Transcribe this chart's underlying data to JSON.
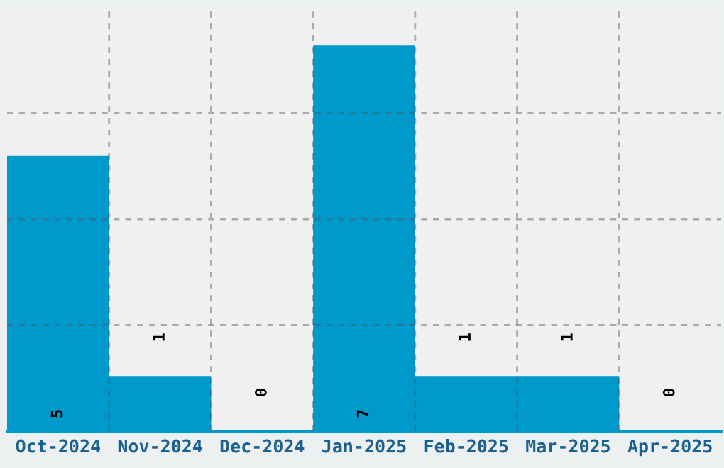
{
  "chart_data": {
    "type": "bar",
    "categories": [
      "Oct-2024",
      "Nov-2024",
      "Dec-2024",
      "Jan-2025",
      "Feb-2025",
      "Mar-2025",
      "Apr-2025"
    ],
    "values": [
      5,
      1,
      0,
      7,
      1,
      1,
      0
    ],
    "color": "#0099cc",
    "data_labels": true,
    "ylim": [
      0,
      7.7
    ],
    "yticks": [
      {
        "value": 1.925,
        "label": null
      },
      {
        "value": 3.85,
        "label": null
      },
      {
        "value": 5.775,
        "label": null
      }
    ],
    "tick_labels": "x",
    "grid": true
  }
}
